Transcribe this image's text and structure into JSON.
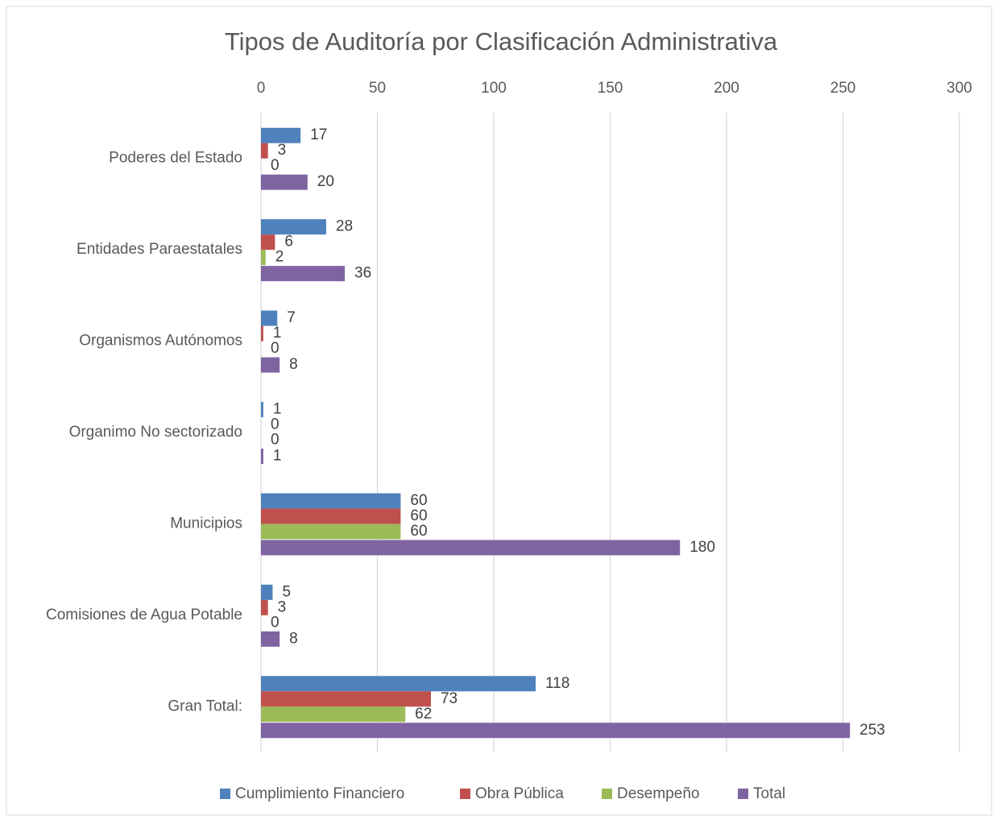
{
  "chart_data": {
    "type": "bar",
    "orientation": "horizontal",
    "title": "Tipos de Auditoría por Clasificación Administrativa",
    "categories": [
      "Poderes del Estado",
      "Entidades Paraestatales",
      "Organismos Autónomos",
      "Organimo No sectorizado",
      "Municipios",
      "Comisiones de Agua Potable",
      "Gran Total:"
    ],
    "series": [
      {
        "name": "Cumplimiento Financiero",
        "color": "#4f81bd",
        "values": [
          17,
          28,
          7,
          1,
          60,
          5,
          118
        ]
      },
      {
        "name": "Obra Pública",
        "color": "#c0504d",
        "values": [
          3,
          6,
          1,
          0,
          60,
          3,
          73
        ]
      },
      {
        "name": "Desempeño",
        "color": "#9bbb59",
        "values": [
          0,
          2,
          0,
          0,
          60,
          0,
          62
        ]
      },
      {
        "name": "Total",
        "color": "#8064a2",
        "values": [
          20,
          36,
          8,
          1,
          180,
          8,
          253
        ]
      }
    ],
    "xlim": [
      0,
      300
    ],
    "xticks": [
      0,
      50,
      100,
      150,
      200,
      250,
      300
    ],
    "grid": true,
    "legend": "bottom"
  }
}
